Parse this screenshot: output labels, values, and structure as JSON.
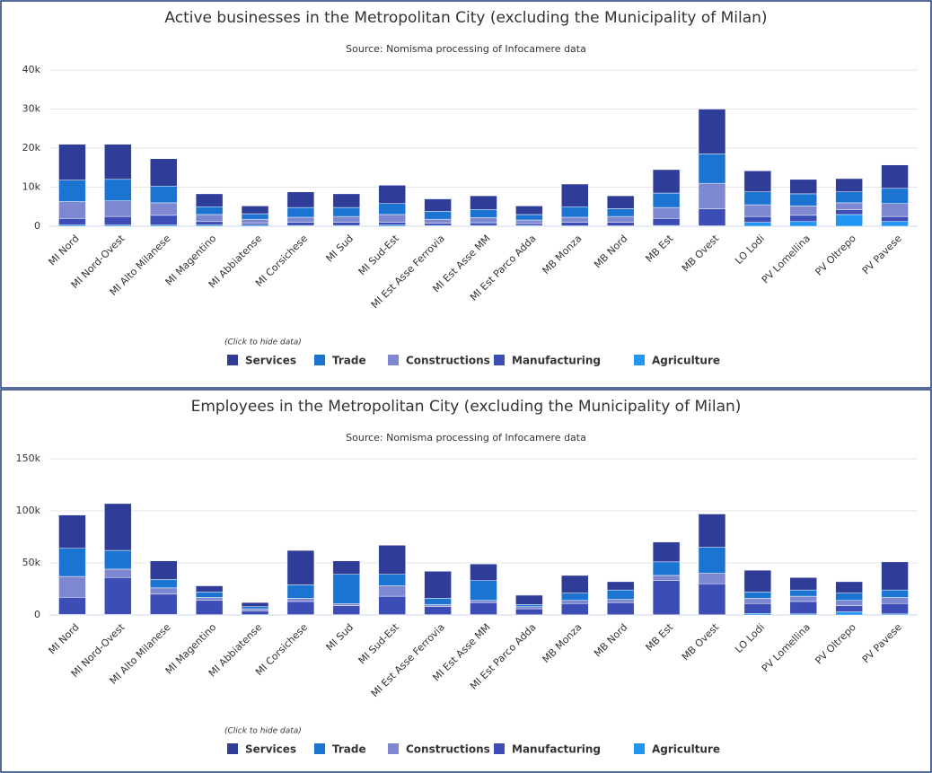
{
  "chart_data": [
    {
      "type": "bar",
      "stacked": true,
      "title": "Active businesses in the Metropolitan City (excluding the Municipality of Milan)",
      "subtitle": "Source: Nomisma processing of Infocamere data",
      "legend_hint": "(Click to hide data)",
      "categories": [
        "MI Nord",
        "MI Nord-Ovest",
        "MI Alto Milanese",
        "MI Magentino",
        "MI Abbiatense",
        "MI Corsichese",
        "MI Sud",
        "MI Sud-Est",
        "MI Est Asse Ferrovia",
        "MI Est Asse MM",
        "MI Est Parco Adda",
        "MB Monza",
        "MB Nord",
        "MB Est",
        "MB Ovest",
        "LO Lodi",
        "PV Lomellina",
        "PV Oltrepo",
        "PV Pavese"
      ],
      "series": [
        {
          "name": "Services",
          "color": "#2f3d99",
          "values": [
            9200,
            9000,
            7000,
            3300,
            2000,
            4000,
            3500,
            4700,
            3200,
            3500,
            2200,
            5800,
            3300,
            6000,
            11500,
            5400,
            3700,
            3400,
            6000
          ]
        },
        {
          "name": "Trade",
          "color": "#1b74d2",
          "values": [
            5500,
            5500,
            4300,
            2000,
            1400,
            2500,
            2300,
            2800,
            2000,
            2100,
            1400,
            2700,
            2000,
            3700,
            7500,
            3300,
            3100,
            2800,
            3900
          ]
        },
        {
          "name": "Constructions",
          "color": "#7d88d0",
          "values": [
            4300,
            4000,
            3200,
            1800,
            1000,
            1300,
            1500,
            2000,
            1000,
            1300,
            900,
            1300,
            1500,
            2800,
            6500,
            3000,
            2400,
            1800,
            3300
          ]
        },
        {
          "name": "Manufacturing",
          "color": "#3c4db5",
          "values": [
            1700,
            2200,
            2500,
            900,
            500,
            800,
            800,
            700,
            600,
            700,
            500,
            900,
            900,
            1800,
            4400,
            1500,
            1600,
            1200,
            1300
          ]
        },
        {
          "name": "Agriculture",
          "color": "#2196f3",
          "values": [
            300,
            300,
            300,
            300,
            300,
            200,
            200,
            300,
            200,
            200,
            200,
            100,
            100,
            200,
            100,
            1000,
            1200,
            3000,
            1200
          ]
        }
      ],
      "ylim": [
        0,
        40000
      ],
      "yticks": [
        0,
        {
          "value": 10000,
          "label": "10k"
        },
        {
          "value": 20000,
          "label": "20k"
        },
        {
          "value": 30000,
          "label": "30k"
        },
        {
          "value": 40000,
          "label": "40k"
        }
      ],
      "grid": true
    },
    {
      "type": "bar",
      "stacked": true,
      "title": "Employees in the Metropolitan City (excluding the Municipality of Milan)",
      "subtitle": "Source: Nomisma processing of Infocamere data",
      "legend_hint": "(Click to hide data)",
      "categories": [
        "MI Nord",
        "MI Nord-Ovest",
        "MI Alto Milanese",
        "MI Magentino",
        "MI Abbiatense",
        "MI Corsichese",
        "MI Sud",
        "MI Sud-Est",
        "MI Est Asse Ferrovia",
        "MI Est Asse MM",
        "MI Est Parco Adda",
        "MB Monza",
        "MB Nord",
        "MB Est",
        "MB Ovest",
        "LO Lodi",
        "PV Lomellina",
        "PV Oltrepo",
        "PV Pavese"
      ],
      "series": [
        {
          "name": "Services",
          "color": "#2f3d99",
          "values": [
            32000,
            45000,
            18000,
            6000,
            4000,
            33000,
            13000,
            28000,
            26000,
            16000,
            9000,
            17000,
            8000,
            19000,
            32000,
            21000,
            12000,
            11000,
            27000
          ]
        },
        {
          "name": "Trade",
          "color": "#1b74d2",
          "values": [
            27000,
            18000,
            8000,
            5000,
            2000,
            13000,
            28000,
            11000,
            6000,
            19000,
            2000,
            7000,
            9000,
            13000,
            25000,
            6000,
            6000,
            7000,
            7000
          ]
        },
        {
          "name": "Constructions",
          "color": "#7d88d0",
          "values": [
            20000,
            8000,
            6000,
            3000,
            2000,
            3000,
            2000,
            10000,
            2000,
            2000,
            2000,
            3000,
            3000,
            5000,
            10000,
            5000,
            5000,
            5000,
            6000
          ]
        },
        {
          "name": "Manufacturing",
          "color": "#3c4db5",
          "values": [
            16500,
            35500,
            19500,
            13700,
            3700,
            12700,
            8700,
            17700,
            7700,
            11700,
            5800,
            10800,
            11800,
            32800,
            29800,
            9500,
            12000,
            6000,
            10000
          ]
        },
        {
          "name": "Agriculture",
          "color": "#2196f3",
          "values": [
            500,
            500,
            500,
            300,
            300,
            300,
            300,
            300,
            300,
            300,
            200,
            200,
            200,
            200,
            200,
            1500,
            1000,
            3000,
            1000
          ]
        }
      ],
      "ylim": [
        0,
        150000
      ],
      "yticks": [
        0,
        {
          "value": 50000,
          "label": "50k"
        },
        {
          "value": 100000,
          "label": "100k"
        },
        {
          "value": 150000,
          "label": "150k"
        }
      ],
      "grid": true
    }
  ]
}
